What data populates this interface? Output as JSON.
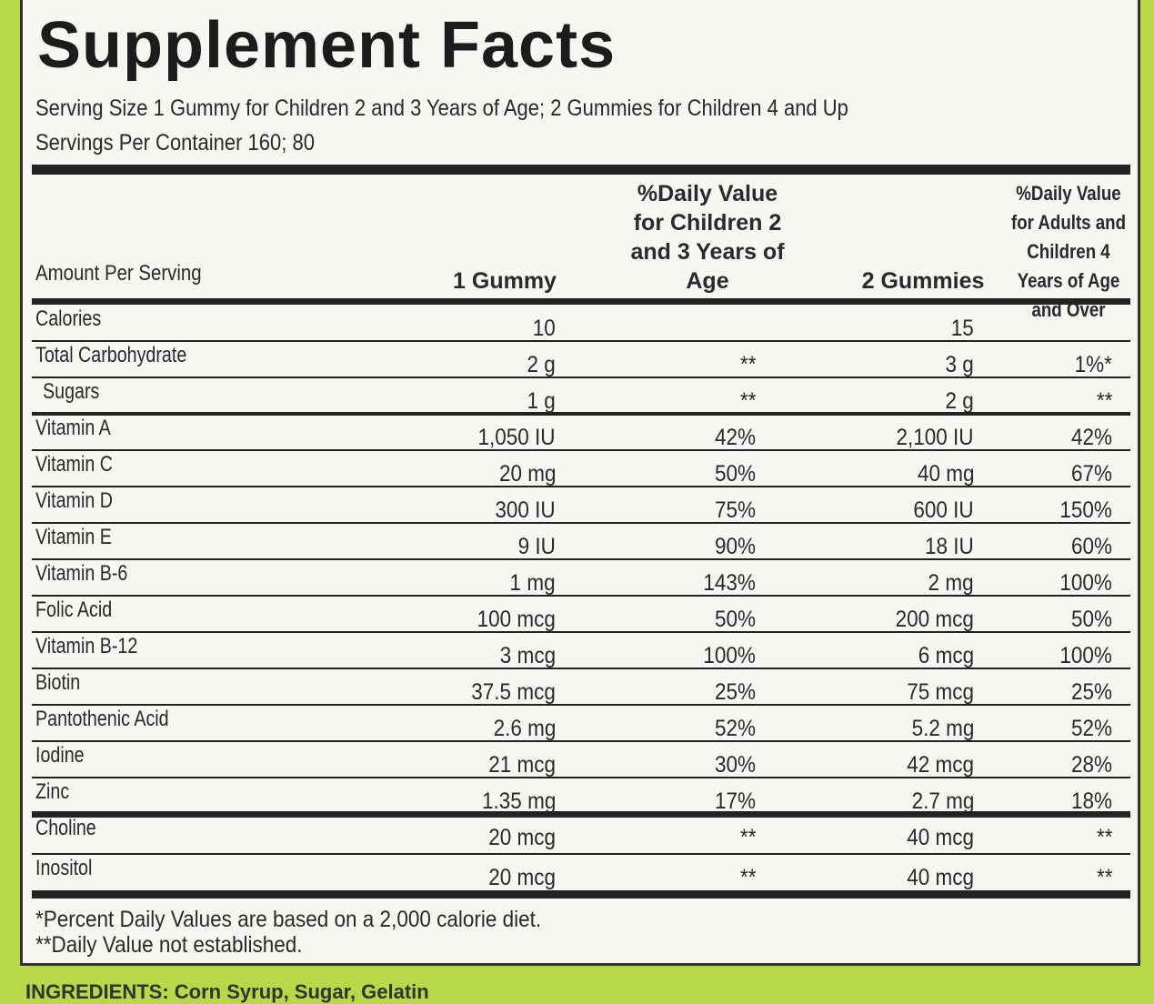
{
  "title": "Supplement Facts",
  "serving_size": "Serving Size 1 Gummy for Children 2 and 3 Years of Age; 2 Gummies for Children 4 and Up",
  "servings_per_container": "Servings Per Container 160; 80",
  "table": {
    "headers": [
      "Amount Per Serving",
      "1 Gummy",
      "%Daily Value for Children 2 and 3 Years of Age",
      "2 Gummies",
      "%Daily Value for Adults and Children 4 Years of Age and Over"
    ],
    "rows": [
      {
        "name": "Calories",
        "one": "10",
        "two": "15"
      },
      {
        "name": "Total Carbohydrate",
        "one": "2 g",
        "dv_child": "**",
        "two": "3 g",
        "dv_adult": "1%*"
      },
      {
        "name": "Sugars",
        "one": "1 g",
        "dv_child": "**",
        "two": "2 g",
        "dv_adult": "**"
      },
      {
        "name": "Vitamin A",
        "one": "1,050 IU",
        "dv_child": "42%",
        "two": "2,100 IU",
        "dv_adult": "42%"
      },
      {
        "name": "Vitamin C",
        "one": "20 mg",
        "dv_child": "50%",
        "two": "40 mg",
        "dv_adult": "67%"
      },
      {
        "name": "Vitamin D",
        "one": "300 IU",
        "dv_child": "75%",
        "two": "600 IU",
        "dv_adult": "150%"
      },
      {
        "name": "Vitamin E",
        "one": "9 IU",
        "dv_child": "90%",
        "two": "18 IU",
        "dv_adult": "60%"
      },
      {
        "name": "Vitamin B-6",
        "one": "1 mg",
        "dv_child": "143%",
        "two": "2 mg",
        "dv_adult": "100%"
      },
      {
        "name": "Folic Acid",
        "one": "100 mcg",
        "dv_child": "50%",
        "two": "200 mcg",
        "dv_adult": "50%"
      },
      {
        "name": "Vitamin B-12",
        "one": "3 mcg",
        "dv_child": "100%",
        "two": "6 mcg",
        "dv_adult": "100%"
      },
      {
        "name": "Biotin",
        "one": "37.5 mcg",
        "dv_child": "25%",
        "two": "75 mcg",
        "dv_adult": "25%"
      },
      {
        "name": "Pantothenic Acid",
        "one": "2.6 mg",
        "dv_child": "52%",
        "two": "5.2 mg",
        "dv_adult": "52%"
      },
      {
        "name": "Iodine",
        "one": "21 mcg",
        "dv_child": "30%",
        "two": "42 mcg",
        "dv_adult": "28%"
      },
      {
        "name": "Zinc",
        "one": "1.35 mg",
        "dv_child": "17%",
        "two": "2.7 mg",
        "dv_adult": "18%"
      },
      {
        "name": "Choline",
        "one": "20 mcg",
        "dv_child": "**",
        "two": "40 mcg",
        "dv_adult": "**"
      },
      {
        "name": "Inositol",
        "one": "20 mcg",
        "dv_child": "**",
        "two": "40 mcg",
        "dv_adult": "**"
      }
    ]
  },
  "footnotes": [
    "*Percent Daily Values are based on a 2,000 calorie diet.",
    "**Daily Value not established."
  ],
  "ingredients": "INGREDIENTS: Corn Syrup, Sugar, Gelatin"
}
